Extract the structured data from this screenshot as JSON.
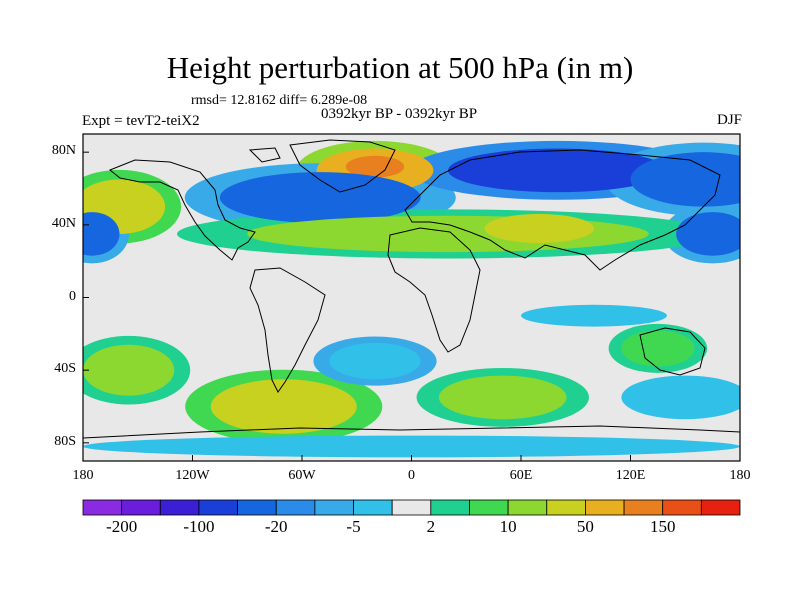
{
  "title": "Height perturbation at 500 hPa (in m)",
  "stats": "rmsd= 12.8162 diff= 6.289e-08",
  "period": "0392kyr BP - 0392kyr BP",
  "experiment": "Expt = tevT2-teiX2",
  "season": "DJF",
  "map": {
    "lon_range": [
      -180,
      180
    ],
    "lat_range": [
      -90,
      90
    ],
    "lat_tick_labels": [
      {
        "lat": 80,
        "label": "80N"
      },
      {
        "lat": 40,
        "label": "40N"
      },
      {
        "lat": 0,
        "label": "0"
      },
      {
        "lat": -40,
        "label": "40S"
      },
      {
        "lat": -80,
        "label": "80S"
      }
    ],
    "lon_tick_labels": [
      {
        "lon": -180,
        "label": "180"
      },
      {
        "lon": -120,
        "label": "120W"
      },
      {
        "lon": -60,
        "label": "60W"
      },
      {
        "lon": 0,
        "label": "0"
      },
      {
        "lon": 60,
        "label": "60E"
      },
      {
        "lon": 120,
        "label": "120E"
      },
      {
        "lon": 180,
        "label": "180"
      }
    ],
    "colorbar": {
      "colors": [
        "#8a2be2",
        "#6a1ddb",
        "#3a1fd6",
        "#1a3fd8",
        "#1666e0",
        "#2a8ce8",
        "#38aae8",
        "#30c0e8",
        "#e8e8e8",
        "#20d090",
        "#40d850",
        "#8cd830",
        "#c8d020",
        "#e8b020",
        "#e88020",
        "#e85018",
        "#e82010"
      ],
      "tick_labels": [
        {
          "after_box": 1,
          "label": "-200"
        },
        {
          "after_box": 3,
          "label": "-100"
        },
        {
          "after_box": 5,
          "label": "-20"
        },
        {
          "after_box": 7,
          "label": "-5"
        },
        {
          "after_box": 9,
          "label": "2"
        },
        {
          "after_box": 11,
          "label": "10"
        },
        {
          "after_box": 13,
          "label": "50"
        },
        {
          "after_box": 15,
          "label": "150"
        }
      ]
    },
    "anomaly_regions": [
      {
        "name": "greenland-high",
        "lon": -20,
        "lat": 70,
        "rlon": 32,
        "rlat": 12,
        "color": "#e8b020",
        "halo": "#8cd830"
      },
      {
        "name": "greenland-core",
        "lon": -20,
        "lat": 72,
        "rlon": 16,
        "rlat": 6,
        "color": "#e88020"
      },
      {
        "name": "north-atlantic-low",
        "lon": -50,
        "lat": 55,
        "rlon": 55,
        "rlat": 14,
        "color": "#1666e0",
        "halo": "#38aae8"
      },
      {
        "name": "siberia-low",
        "lon": 80,
        "lat": 70,
        "rlon": 60,
        "rlat": 12,
        "color": "#1a3fd8",
        "halo": "#2a8ce8"
      },
      {
        "name": "north-pacific-low",
        "lon": 160,
        "lat": 65,
        "rlon": 40,
        "rlat": 15,
        "color": "#1666e0",
        "halo": "#38aae8"
      },
      {
        "name": "alaska-high",
        "lon": -160,
        "lat": 50,
        "rlon": 25,
        "rlat": 15,
        "color": "#c8d020",
        "halo": "#40d850"
      },
      {
        "name": "pacific-low-west",
        "lon": -175,
        "lat": 35,
        "rlon": 15,
        "rlat": 12,
        "color": "#1666e0",
        "halo": "#38aae8"
      },
      {
        "name": "pacific-low-east",
        "lon": 165,
        "lat": 35,
        "rlon": 20,
        "rlat": 12,
        "color": "#1666e0",
        "halo": "#38aae8"
      },
      {
        "name": "subtropical-band",
        "lon": 20,
        "lat": 35,
        "rlon": 110,
        "rlat": 10,
        "color": "#8cd830",
        "halo": "#20d090"
      },
      {
        "name": "eurasia-high",
        "lon": 70,
        "lat": 38,
        "rlon": 30,
        "rlat": 8,
        "color": "#c8d020"
      },
      {
        "name": "pacific-sh-high",
        "lon": -155,
        "lat": -40,
        "rlon": 25,
        "rlat": 14,
        "color": "#8cd830",
        "halo": "#20d090"
      },
      {
        "name": "south-america-high",
        "lon": -70,
        "lat": -60,
        "rlon": 40,
        "rlat": 15,
        "color": "#c8d020",
        "halo": "#40d850"
      },
      {
        "name": "south-atlantic-low",
        "lon": -20,
        "lat": -35,
        "rlon": 25,
        "rlat": 10,
        "color": "#30c0e8",
        "halo": "#38aae8"
      },
      {
        "name": "south-indian-high",
        "lon": 50,
        "lat": -55,
        "rlon": 35,
        "rlat": 12,
        "color": "#8cd830",
        "halo": "#20d090"
      },
      {
        "name": "australia-high",
        "lon": 135,
        "lat": -28,
        "rlon": 20,
        "rlat": 10,
        "color": "#40d850",
        "halo": "#20d090"
      },
      {
        "name": "southern-pacific-low",
        "lon": 150,
        "lat": -55,
        "rlon": 35,
        "rlat": 12,
        "color": "#30c0e8"
      },
      {
        "name": "tropical-pacific-cyan",
        "lon": 100,
        "lat": -10,
        "rlon": 40,
        "rlat": 6,
        "color": "#30c0e8"
      },
      {
        "name": "antarctic-cyan",
        "lon": 0,
        "lat": -82,
        "rlon": 180,
        "rlat": 6,
        "color": "#30c0e8"
      }
    ]
  }
}
